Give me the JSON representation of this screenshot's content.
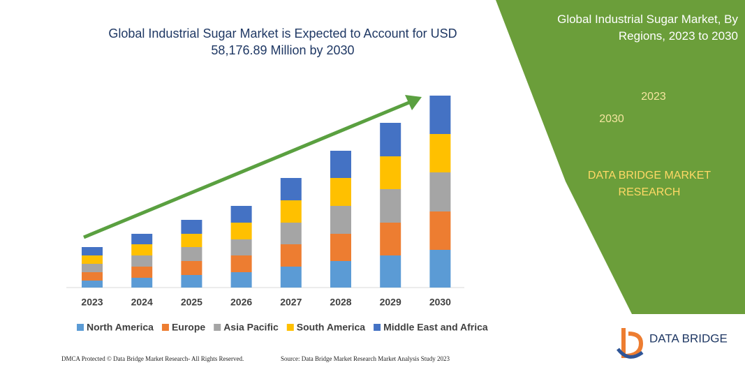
{
  "chart_data": {
    "type": "bar",
    "stacked": true,
    "title": "Global Industrial Sugar Market is Expected to Account for USD 58,176.89 Million by 2030",
    "categories": [
      "2023",
      "2024",
      "2025",
      "2026",
      "2027",
      "2028",
      "2029",
      "2030"
    ],
    "series": [
      {
        "name": "North America",
        "color": "#5b9bd5",
        "values": [
          10,
          14,
          18,
          22,
          30,
          38,
          46,
          54
        ]
      },
      {
        "name": "Europe",
        "color": "#ed7d31",
        "values": [
          12,
          16,
          20,
          24,
          32,
          39,
          47,
          55
        ]
      },
      {
        "name": "Asia Pacific",
        "color": "#a5a5a5",
        "values": [
          12,
          16,
          20,
          23,
          31,
          40,
          48,
          56
        ]
      },
      {
        "name": "South America",
        "color": "#ffc000",
        "values": [
          12,
          16,
          19,
          24,
          32,
          40,
          47,
          55
        ]
      },
      {
        "name": "Middle East and Africa",
        "color": "#4472c4",
        "values": [
          12,
          15,
          20,
          24,
          32,
          39,
          48,
          55
        ]
      }
    ]
  },
  "panel": {
    "title": "Global Industrial Sugar Market, By Regions, 2023 to 2030",
    "hexagons": [
      "2023",
      "2030"
    ],
    "brand": "DATA BRIDGE MARKET RESEARCH"
  },
  "logo": "DATA BRIDGE",
  "footer": {
    "left": "DMCA Protected © Data Bridge Market Research- All Rights Reserved.",
    "right": "Source: Data Bridge Market Research Market Analysis Study 2023"
  }
}
